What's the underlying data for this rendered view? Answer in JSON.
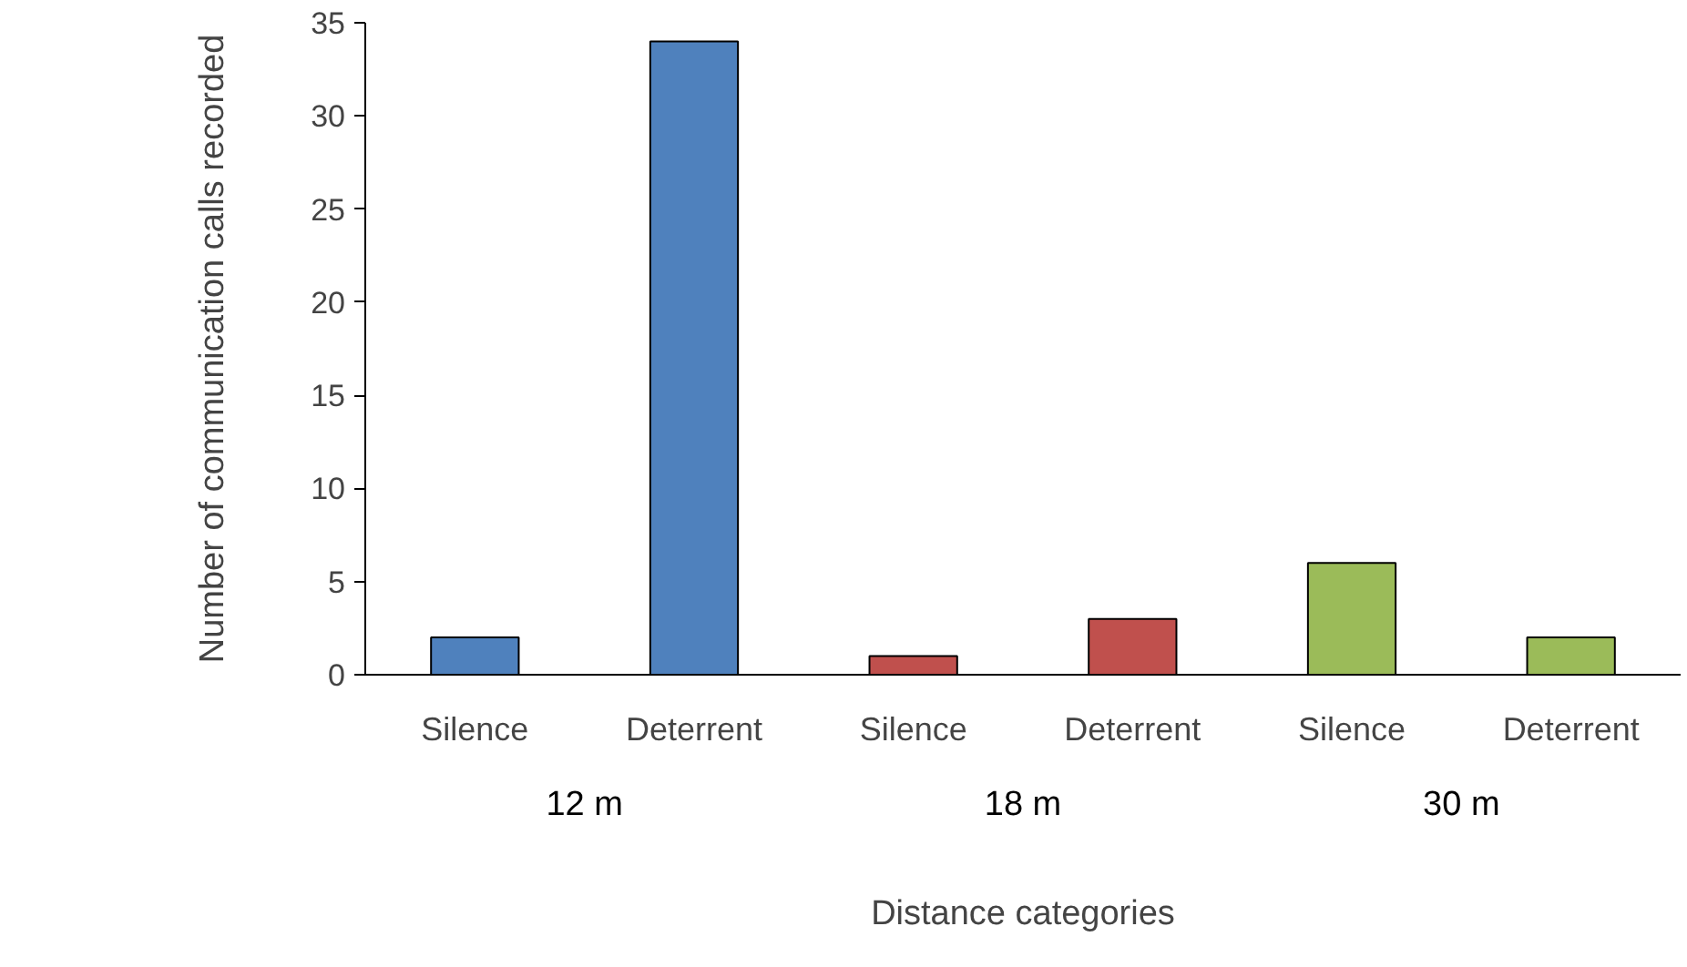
{
  "chart_data": {
    "type": "bar",
    "xlabel": "Distance categories",
    "ylabel": "Number of communication calls recorded",
    "categories": [
      "Silence",
      "Deterrent",
      "Silence",
      "Deterrent",
      "Silence",
      "Deterrent"
    ],
    "values": [
      2,
      34,
      1,
      3,
      6,
      2
    ],
    "colors": [
      "#4f81bd",
      "#4f81bd",
      "#c0504d",
      "#c0504d",
      "#9bbb59",
      "#9bbb59"
    ],
    "ylim": [
      0,
      35
    ],
    "yticks": [
      0,
      5,
      10,
      15,
      20,
      25,
      30,
      35
    ],
    "grid": false,
    "annotations": [
      "12 m",
      "18 m",
      "30 m"
    ]
  }
}
